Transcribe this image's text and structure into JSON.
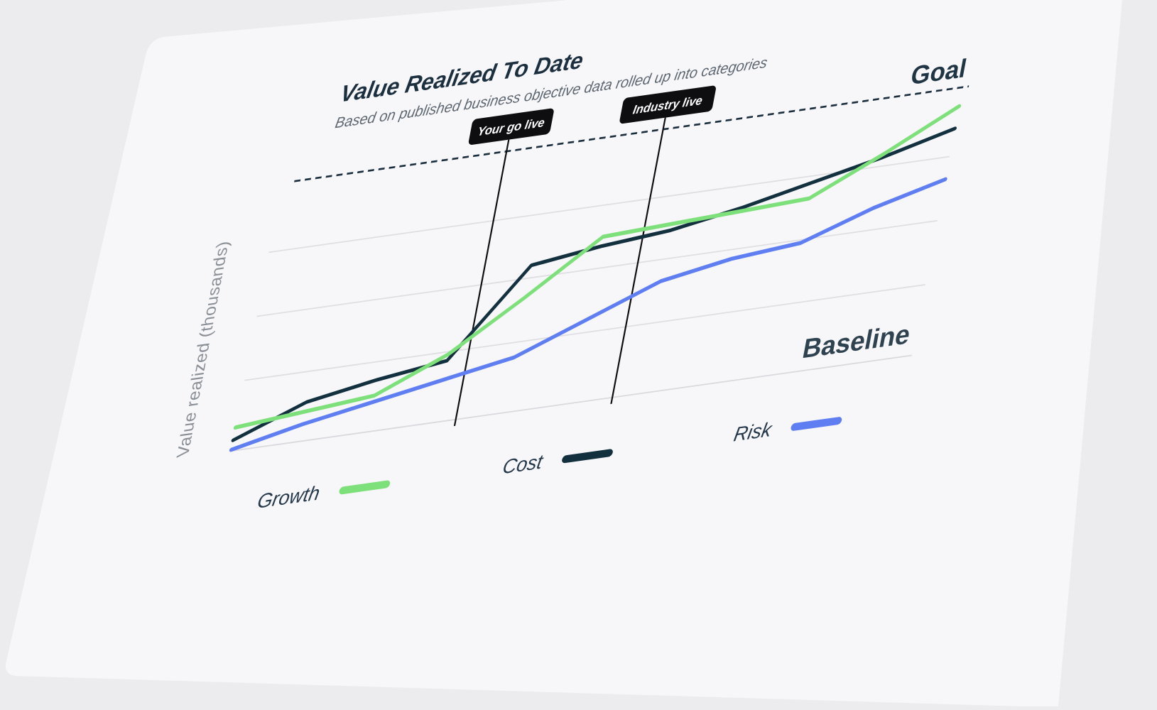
{
  "chart_data": {
    "type": "line",
    "title": "Value Realized To Date",
    "subtitle": "Based on published business objective data rolled up into categories",
    "ylabel": "Value realized (thousands)",
    "xlabel": "",
    "x": [
      0,
      1,
      2,
      3,
      4,
      5,
      6,
      7,
      8,
      9,
      10
    ],
    "ylim": [
      0,
      4.2
    ],
    "grid": true,
    "reference_lines": [
      {
        "name": "goal",
        "label": "Goal",
        "value": 4.2
      },
      {
        "name": "baseline",
        "label": "Baseline",
        "value": 0
      }
    ],
    "markers": [
      {
        "name": "your-go-live",
        "label": "Your go live",
        "x": 3.3
      },
      {
        "name": "industry-live",
        "label": "Industry live",
        "x": 5.6
      }
    ],
    "series": [
      {
        "name": "Growth",
        "color": "#7ee07a",
        "values": [
          0.35,
          0.45,
          0.55,
          1.05,
          1.8,
          2.6,
          2.65,
          2.7,
          2.75,
          3.3,
          3.9
        ]
      },
      {
        "name": "Cost",
        "color": "#13303f",
        "values": [
          0.15,
          0.6,
          0.8,
          0.95,
          2.3,
          2.45,
          2.55,
          2.75,
          3.0,
          3.25,
          3.55
        ]
      },
      {
        "name": "Risk",
        "color": "#5f7ef2",
        "values": [
          0.0,
          0.25,
          0.45,
          0.65,
          0.85,
          1.3,
          1.75,
          1.95,
          2.05,
          2.45,
          2.75
        ]
      }
    ],
    "legend": [
      {
        "label": "Growth",
        "color": "#7ee07a"
      },
      {
        "label": "Cost",
        "color": "#13303f"
      },
      {
        "label": "Risk",
        "color": "#5f7ef2"
      }
    ]
  }
}
